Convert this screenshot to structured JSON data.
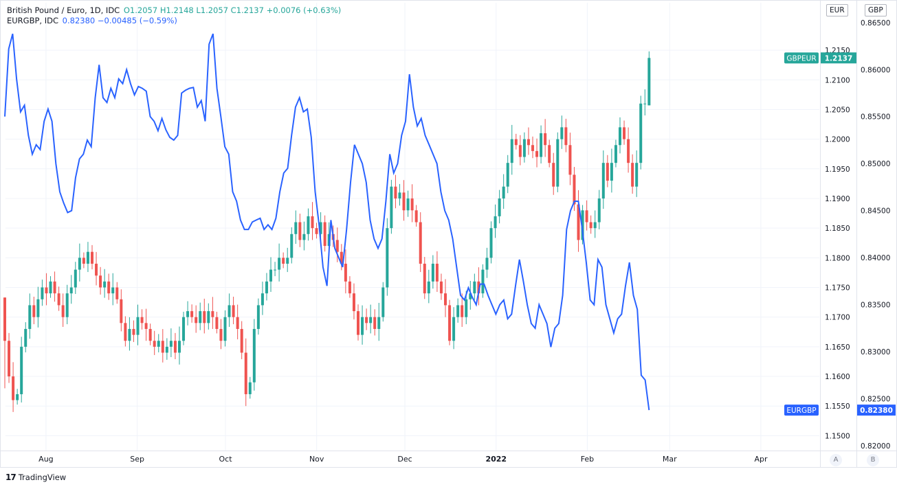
{
  "legend": {
    "line1_name": "British Pound / Euro, 1D, IDC",
    "line1_values": "O1.2057  H1.2148  L1.2057  C1.2137  +0.0076 (+0.63%)",
    "line2_name": "EURGBP, IDC",
    "line2_values": "0.82380  −0.00485 (−0.59%)"
  },
  "axis_tags": {
    "left_axis": "EUR",
    "right_axis": "GBP"
  },
  "scale_buttons": {
    "a": "A",
    "b": "B"
  },
  "footer": {
    "logo": "17",
    "brand": "TradingView"
  },
  "colors": {
    "up": "#26a69a",
    "down": "#ef5350",
    "line": "#2962ff",
    "grid": "#f0f3fa"
  },
  "chart_data": {
    "type": "candlestick+line",
    "x_labels": [
      "Aug",
      "Sep",
      "Oct",
      "Nov",
      "Dec",
      "2022",
      "Feb",
      "Mar",
      "Apr"
    ],
    "x_label_days": [
      14,
      45,
      75,
      106,
      136,
      167,
      198,
      226,
      257
    ],
    "y_left": {
      "label": "EUR",
      "ylim": [
        1.1475,
        1.223
      ],
      "ticks": [
        "1.1500",
        "1.1550",
        "1.1600",
        "1.1650",
        "1.1700",
        "1.1750",
        "1.1800",
        "1.1850",
        "1.1900",
        "1.1950",
        "1.2000",
        "1.2050",
        "1.2100",
        "1.2150"
      ]
    },
    "y_right": {
      "label": "GBP",
      "ylim": [
        0.8195,
        0.8671
      ],
      "ticks": [
        "0.82000",
        "0.82500",
        "0.83000",
        "0.83500",
        "0.84000",
        "0.84500",
        "0.85000",
        "0.85500",
        "0.86000",
        "0.86500"
      ]
    },
    "series": [
      {
        "name": "GBPEUR",
        "type": "candlestick",
        "axis": "left",
        "last": "1.2137",
        "ohlc_first": [
          1.1733,
          1.1733,
          1.158,
          1.166
        ],
        "ohlc_last": [
          1.2057,
          1.2148,
          1.2057,
          1.2137
        ],
        "close": [
          1.166,
          1.16,
          1.156,
          1.157,
          1.165,
          1.168,
          1.172,
          1.17,
          1.173,
          1.175,
          1.174,
          1.176,
          1.174,
          1.172,
          1.17,
          1.174,
          1.175,
          1.178,
          1.18,
          1.179,
          1.181,
          1.179,
          1.177,
          1.175,
          1.176,
          1.174,
          1.175,
          1.173,
          1.169,
          1.166,
          1.168,
          1.167,
          1.17,
          1.169,
          1.168,
          1.166,
          1.165,
          1.166,
          1.164,
          1.165,
          1.166,
          1.164,
          1.166,
          1.17,
          1.171,
          1.17,
          1.169,
          1.171,
          1.169,
          1.171,
          1.17,
          1.168,
          1.166,
          1.17,
          1.172,
          1.17,
          1.168,
          1.164,
          1.157,
          1.159,
          1.168,
          1.172,
          1.174,
          1.176,
          1.178,
          1.178,
          1.18,
          1.179,
          1.18,
          1.184,
          1.186,
          1.183,
          1.184,
          1.187,
          1.185,
          1.184,
          1.186,
          1.182,
          1.184,
          1.183,
          1.181,
          1.179,
          1.176,
          1.174,
          1.171,
          1.167,
          1.17,
          1.169,
          1.17,
          1.168,
          1.17,
          1.175,
          1.185,
          1.192,
          1.19,
          1.191,
          1.188,
          1.19,
          1.188,
          1.186,
          1.179,
          1.174,
          1.176,
          1.179,
          1.176,
          1.174,
          1.172,
          1.166,
          1.17,
          1.172,
          1.17,
          1.173,
          1.174,
          1.176,
          1.174,
          1.178,
          1.18,
          1.185,
          1.187,
          1.19,
          1.192,
          1.196,
          1.2,
          1.199,
          1.197,
          1.2,
          1.199,
          1.198,
          1.197,
          1.201,
          1.199,
          1.196,
          1.192,
          1.2,
          1.202,
          1.199,
          1.194,
          1.189,
          1.183,
          1.188,
          1.186,
          1.185,
          1.186,
          1.19,
          1.196,
          1.193,
          1.196,
          1.199,
          1.202,
          1.2,
          1.196,
          1.192,
          1.196,
          1.206,
          1.206,
          1.2137
        ]
      },
      {
        "name": "EURGBP",
        "type": "line",
        "axis": "right",
        "last": "0.82380",
        "values": [
          0.855,
          0.8622,
          0.8638,
          0.859,
          0.8555,
          0.8562,
          0.853,
          0.851,
          0.852,
          0.8515,
          0.8545,
          0.8558,
          0.8545,
          0.85,
          0.847,
          0.8458,
          0.8448,
          0.845,
          0.8485,
          0.8505,
          0.851,
          0.8525,
          0.8518,
          0.857,
          0.8605,
          0.857,
          0.8565,
          0.858,
          0.857,
          0.859,
          0.8585,
          0.86,
          0.8585,
          0.8573,
          0.8582,
          0.858,
          0.8577,
          0.855,
          0.8545,
          0.8535,
          0.8548,
          0.8536,
          0.8528,
          0.8525,
          0.853,
          0.8575,
          0.8578,
          0.858,
          0.8581,
          0.856,
          0.8567,
          0.8545,
          0.8627,
          0.8638,
          0.858,
          0.855,
          0.8518,
          0.851,
          0.847,
          0.846,
          0.844,
          0.843,
          0.843,
          0.8438,
          0.844,
          0.8442,
          0.843,
          0.8435,
          0.843,
          0.8442,
          0.847,
          0.849,
          0.8495,
          0.853,
          0.856,
          0.857,
          0.8555,
          0.8558,
          0.8528,
          0.847,
          0.8435,
          0.839,
          0.837,
          0.844,
          0.841,
          0.84,
          0.839,
          0.843,
          0.848,
          0.852,
          0.851,
          0.85,
          0.848,
          0.844,
          0.842,
          0.841,
          0.842,
          0.846,
          0.851,
          0.849,
          0.85,
          0.853,
          0.8545,
          0.8595,
          0.856,
          0.854,
          0.8548,
          0.853,
          0.852,
          0.851,
          0.85,
          0.847,
          0.845,
          0.844,
          0.842,
          0.839,
          0.836,
          0.8355,
          0.8368,
          0.8358,
          0.835,
          0.8372,
          0.8372,
          0.836,
          0.835,
          0.834,
          0.835,
          0.8355,
          0.8335,
          0.834,
          0.837,
          0.8398,
          0.8375,
          0.835,
          0.833,
          0.8325,
          0.835,
          0.834,
          0.833,
          0.8305,
          0.8325,
          0.833,
          0.836,
          0.843,
          0.845,
          0.846,
          0.846,
          0.843,
          0.8395,
          0.8355,
          0.835,
          0.8398,
          0.839,
          0.835,
          0.8335,
          0.832,
          0.8335,
          0.834,
          0.837,
          0.8395,
          0.836,
          0.8345,
          0.8275,
          0.827,
          0.8238
        ]
      }
    ],
    "price_tags": [
      {
        "symbol": "GBPEUR",
        "value": "1.2137"
      },
      {
        "symbol": "EURGBP",
        "value": "0.82380"
      }
    ],
    "grid": true
  }
}
